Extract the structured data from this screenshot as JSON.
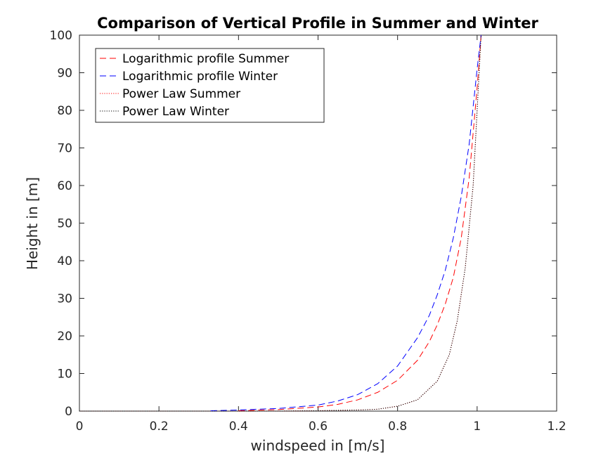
{
  "chart_data": {
    "type": "line",
    "title": "Comparison of Vertical Profile in Summer and Winter",
    "xlabel": "windspeed in [m/s]",
    "ylabel": "Height in [m]",
    "xlim": [
      0,
      1.2
    ],
    "ylim": [
      0,
      100
    ],
    "xticks": [
      0,
      0.2,
      0.4,
      0.6,
      0.8,
      1,
      1.2
    ],
    "xtick_labels": [
      "0",
      "0.2",
      "0.4",
      "0.6",
      "0.8",
      "1",
      "1.2"
    ],
    "yticks": [
      0,
      10,
      20,
      30,
      40,
      50,
      60,
      70,
      80,
      90,
      100
    ],
    "ytick_labels": [
      "0",
      "10",
      "20",
      "30",
      "40",
      "50",
      "60",
      "70",
      "80",
      "90",
      "100"
    ],
    "grid": false,
    "legend_position": "top-left",
    "series": [
      {
        "name": "Logarithmic profile Summer",
        "color": "#ff0000",
        "style": "dashed",
        "x": [
          0.4,
          0.5,
          0.6,
          0.65,
          0.7,
          0.75,
          0.8,
          0.85,
          0.88,
          0.9,
          0.92,
          0.94,
          0.96,
          0.98,
          1.0,
          1.01
        ],
        "y": [
          0.1,
          0.4,
          1.1,
          1.8,
          3.0,
          5.0,
          8.2,
          13.5,
          18.5,
          23.0,
          28.5,
          35.5,
          46.0,
          62.0,
          86.0,
          100
        ]
      },
      {
        "name": "Logarithmic profile Winter",
        "color": "#0000ff",
        "style": "dashed",
        "x": [
          0.33,
          0.4,
          0.5,
          0.6,
          0.65,
          0.7,
          0.75,
          0.8,
          0.85,
          0.88,
          0.9,
          0.92,
          0.94,
          0.96,
          0.98,
          1.0,
          1.01
        ],
        "y": [
          0.1,
          0.3,
          0.7,
          1.6,
          2.7,
          4.4,
          7.3,
          12.0,
          19.5,
          25.5,
          31.0,
          37.5,
          46.0,
          57.0,
          71.0,
          91.0,
          100
        ]
      },
      {
        "name": "Power Law Summer",
        "color": "#ff0000",
        "style": "dotted",
        "x": [
          0.0,
          0.2,
          0.4,
          0.5,
          0.6,
          0.7,
          0.75,
          0.8,
          0.85,
          0.9,
          0.93,
          0.95,
          0.97,
          0.99,
          1.01
        ],
        "y": [
          0.0,
          0.0,
          0.0,
          0.0,
          0.1,
          0.3,
          0.5,
          1.3,
          3.0,
          8.0,
          15.0,
          24.0,
          38.0,
          60.0,
          100
        ]
      },
      {
        "name": "Power Law Winter",
        "color": "#000000",
        "style": "dotted",
        "x": [
          0.0,
          0.2,
          0.4,
          0.5,
          0.6,
          0.7,
          0.75,
          0.8,
          0.85,
          0.9,
          0.93,
          0.95,
          0.97,
          0.99,
          1.01
        ],
        "y": [
          0.0,
          0.0,
          0.0,
          0.0,
          0.1,
          0.3,
          0.5,
          1.3,
          3.0,
          8.0,
          15.0,
          24.0,
          38.0,
          60.0,
          100
        ]
      }
    ]
  }
}
